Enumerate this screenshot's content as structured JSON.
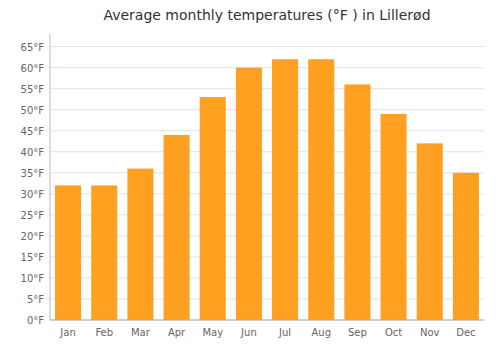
{
  "chart_data": {
    "type": "bar",
    "title": "Average monthly temperatures (°F ) in Lillerød",
    "categories": [
      "Jan",
      "Feb",
      "Mar",
      "Apr",
      "May",
      "Jun",
      "Jul",
      "Aug",
      "Sep",
      "Oct",
      "Nov",
      "Dec"
    ],
    "values": [
      32,
      32,
      36,
      44,
      53,
      60,
      62,
      62,
      56,
      49,
      42,
      35
    ],
    "color": "#FFA020",
    "ylim": [
      0,
      68
    ],
    "yticks": [
      {
        "value": 0,
        "label": "0°F"
      },
      {
        "value": 5,
        "label": "5°F"
      },
      {
        "value": 10,
        "label": "10°F"
      },
      {
        "value": 15,
        "label": "15°F"
      },
      {
        "value": 20,
        "label": "20°F"
      },
      {
        "value": 25,
        "label": "25°F"
      },
      {
        "value": 30,
        "label": "30°F"
      },
      {
        "value": 35,
        "label": "35°F"
      },
      {
        "value": 40,
        "label": "40°F"
      },
      {
        "value": 45,
        "label": "45°F"
      },
      {
        "value": 50,
        "label": "50°F"
      },
      {
        "value": 55,
        "label": "55°F"
      },
      {
        "value": 60,
        "label": "60°F"
      },
      {
        "value": 65,
        "label": "65°F"
      }
    ],
    "grid": true
  }
}
